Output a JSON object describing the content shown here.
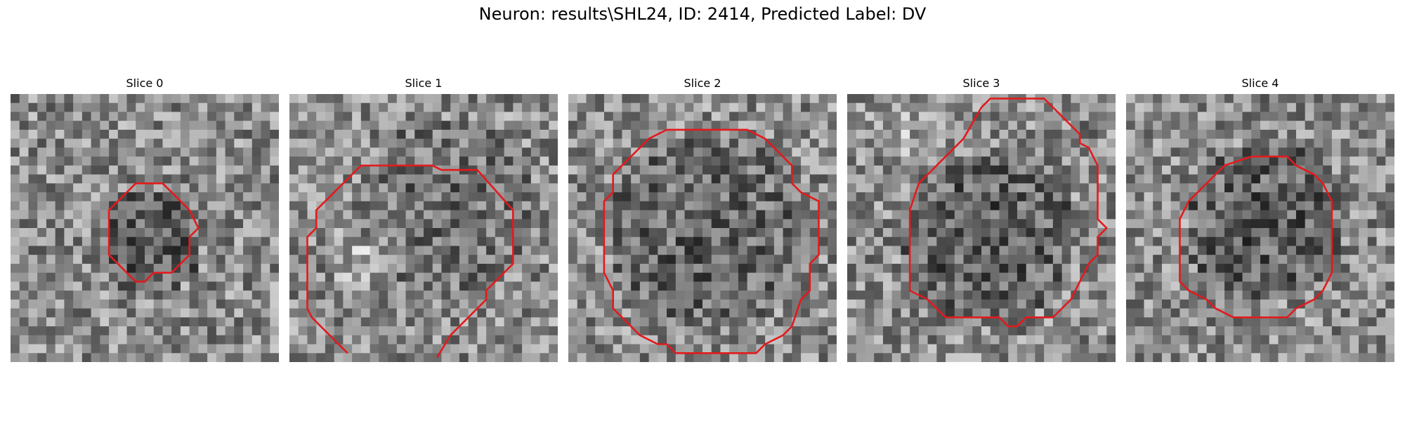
{
  "figure": {
    "title": "Neuron: results\\SHL24, ID: 2414, Predicted Label: DV"
  },
  "panels": [
    {
      "title": "Slice 0",
      "seed": 11,
      "contour_color": "#e31a1c"
    },
    {
      "title": "Slice 1",
      "seed": 23,
      "contour_color": "#e31a1c"
    },
    {
      "title": "Slice 2",
      "seed": 37,
      "contour_color": "#e31a1c"
    },
    {
      "title": "Slice 3",
      "seed": 41,
      "contour_color": "#e31a1c"
    },
    {
      "title": "Slice 4",
      "seed": 53,
      "contour_color": "#e31a1c"
    }
  ]
}
